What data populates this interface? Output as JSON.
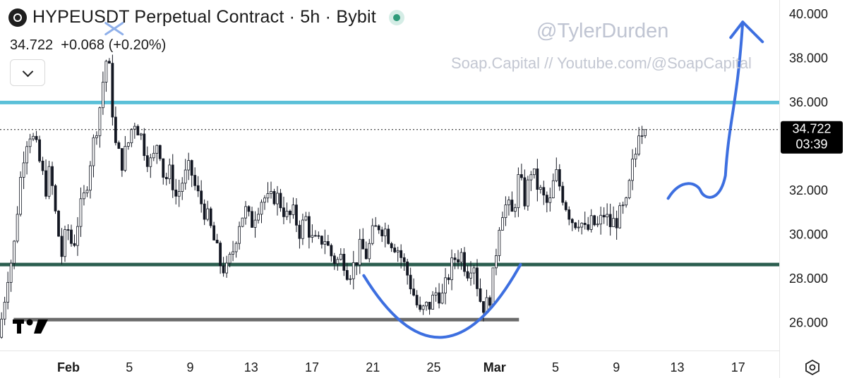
{
  "header": {
    "title": "HYPEUSDT Perpetual Contract · 5h · Bybit",
    "last": "34.722",
    "change": "+0.068",
    "change_pct": "(+0.20%)"
  },
  "watermark": {
    "handle": "@TylerDurden",
    "source": "Soap.Capital // Youtube.com/@SoapCapital"
  },
  "price_label": {
    "price": "34.722",
    "countdown": "03:39"
  },
  "icons": [
    "market-logo-icon",
    "status-dot-icon",
    "chevron-down-icon",
    "tradingview-logo-icon",
    "settings-hex-icon"
  ],
  "colors": {
    "candle": "#131722",
    "cyan_line": "#5bc0d8",
    "green_line": "#2b5e4f",
    "gray_line": "#6b6b6b",
    "drawing": "#3d6fe0"
  },
  "chart_data": {
    "type": "candlestick",
    "title": "HYPEUSDT Perpetual Contract · 5h · Bybit",
    "ylim": [
      24.7,
      40.6
    ],
    "y_ticks": [
      "40.000",
      "38.000",
      "36.000",
      "34.000",
      "32.000",
      "30.000",
      "28.000",
      "26.000"
    ],
    "y_tick_values": [
      40,
      38,
      36,
      34,
      32,
      30,
      28,
      26
    ],
    "x_ticks": [
      "Feb",
      "5",
      "9",
      "13",
      "17",
      "21",
      "25",
      "Mar",
      "5",
      "9",
      "13",
      "17"
    ],
    "x_tick_days": [
      32,
      36,
      40,
      44,
      48,
      52,
      56,
      60,
      64,
      68,
      72,
      76
    ],
    "x_range_days": [
      27.5,
      78.7
    ],
    "last_price": 34.722,
    "horizontal_levels": [
      {
        "name": "resistance",
        "value": 35.95,
        "color": "#5bc0d8"
      },
      {
        "name": "support",
        "value": 28.6,
        "color": "#2b5e4f"
      },
      {
        "name": "low-line",
        "value": 26.1,
        "color": "#6b6b6b",
        "x_range_days": [
          28.4,
          61.6
        ]
      }
    ],
    "price_path": [
      [
        27.6,
        25.3
      ],
      [
        27.9,
        26.5
      ],
      [
        28.2,
        28.1
      ],
      [
        28.6,
        29.2
      ],
      [
        28.9,
        31.5
      ],
      [
        29.2,
        33.4
      ],
      [
        29.6,
        34.7
      ],
      [
        30.0,
        34.1
      ],
      [
        30.4,
        33.0
      ],
      [
        30.7,
        32.0
      ],
      [
        31.0,
        32.9
      ],
      [
        31.4,
        30.6
      ],
      [
        31.8,
        28.9
      ],
      [
        32.1,
        30.4
      ],
      [
        32.5,
        29.3
      ],
      [
        32.9,
        30.9
      ],
      [
        33.3,
        31.8
      ],
      [
        33.7,
        33.6
      ],
      [
        34.2,
        35.4
      ],
      [
        34.6,
        37.6
      ],
      [
        34.8,
        38.2
      ],
      [
        35.0,
        36.4
      ],
      [
        35.3,
        34.0
      ],
      [
        35.7,
        33.2
      ],
      [
        36.1,
        34.0
      ],
      [
        36.5,
        35.2
      ],
      [
        36.9,
        34.6
      ],
      [
        37.3,
        33.6
      ],
      [
        37.7,
        33.1
      ],
      [
        38.1,
        34.4
      ],
      [
        38.5,
        32.4
      ],
      [
        38.9,
        32.8
      ],
      [
        39.3,
        31.6
      ],
      [
        39.7,
        32.4
      ],
      [
        40.2,
        33.0
      ],
      [
        40.6,
        31.9
      ],
      [
        41.0,
        31.3
      ],
      [
        41.4,
        30.6
      ],
      [
        41.8,
        29.6
      ],
      [
        42.2,
        28.6
      ],
      [
        42.6,
        28.3
      ],
      [
        43.0,
        29.2
      ],
      [
        43.4,
        30.5
      ],
      [
        43.8,
        31.1
      ],
      [
        44.2,
        30.4
      ],
      [
        44.6,
        31.2
      ],
      [
        45.0,
        31.7
      ],
      [
        45.4,
        31.4
      ],
      [
        45.8,
        31.8
      ],
      [
        46.2,
        31.3
      ],
      [
        46.6,
        30.7
      ],
      [
        47.0,
        30.9
      ],
      [
        47.4,
        30.1
      ],
      [
        47.8,
        30.7
      ],
      [
        48.2,
        29.7
      ],
      [
        48.6,
        29.5
      ],
      [
        49.0,
        29.9
      ],
      [
        49.4,
        29.1
      ],
      [
        49.8,
        28.7
      ],
      [
        50.2,
        29.0
      ],
      [
        50.6,
        28.2
      ],
      [
        51.0,
        28.6
      ],
      [
        51.4,
        29.4
      ],
      [
        51.8,
        29.0
      ],
      [
        52.2,
        30.0
      ],
      [
        52.6,
        30.4
      ],
      [
        53.0,
        30.2
      ],
      [
        53.4,
        29.7
      ],
      [
        53.8,
        29.4
      ],
      [
        54.2,
        28.7
      ],
      [
        54.6,
        27.9
      ],
      [
        55.0,
        27.0
      ],
      [
        55.3,
        26.3
      ],
      [
        55.6,
        26.6
      ],
      [
        56.0,
        26.8
      ],
      [
        56.4,
        27.4
      ],
      [
        56.8,
        27.1
      ],
      [
        57.2,
        28.2
      ],
      [
        57.6,
        28.9
      ],
      [
        58.0,
        29.1
      ],
      [
        58.4,
        28.3
      ],
      [
        58.8,
        28.9
      ],
      [
        59.2,
        27.1
      ],
      [
        59.6,
        26.6
      ],
      [
        60.0,
        27.4
      ],
      [
        60.3,
        29.2
      ],
      [
        60.6,
        31.0
      ],
      [
        61.0,
        31.3
      ],
      [
        61.4,
        30.8
      ],
      [
        61.8,
        32.6
      ],
      [
        62.2,
        31.5
      ],
      [
        62.6,
        32.9
      ],
      [
        63.0,
        32.2
      ],
      [
        63.4,
        31.6
      ],
      [
        63.8,
        31.2
      ],
      [
        64.2,
        32.8
      ],
      [
        64.6,
        31.9
      ],
      [
        65.0,
        31.1
      ],
      [
        65.4,
        30.5
      ],
      [
        65.8,
        30.7
      ],
      [
        66.2,
        30.0
      ],
      [
        66.6,
        30.5
      ],
      [
        67.0,
        30.3
      ],
      [
        67.4,
        30.9
      ],
      [
        67.8,
        30.4
      ],
      [
        68.2,
        30.6
      ],
      [
        68.6,
        31.0
      ],
      [
        68.9,
        31.3
      ],
      [
        69.2,
        32.9
      ],
      [
        69.5,
        33.7
      ],
      [
        69.7,
        34.9
      ],
      [
        70.0,
        34.7
      ]
    ],
    "drawings": [
      {
        "kind": "cup-curve",
        "color": "#3d6fe0",
        "points": [
          [
            51.4,
            28.1
          ],
          [
            56.6,
            25.3
          ],
          [
            61.7,
            28.6
          ]
        ]
      },
      {
        "kind": "projection-arrow",
        "color": "#3d6fe0",
        "points": [
          [
            71.4,
            31.6
          ],
          [
            74.7,
            32.0
          ],
          [
            76.3,
            39.6
          ]
        ]
      },
      {
        "kind": "x-mark",
        "color": "#8fb0ea",
        "at": [
          35.0,
          39.3
        ]
      }
    ]
  }
}
